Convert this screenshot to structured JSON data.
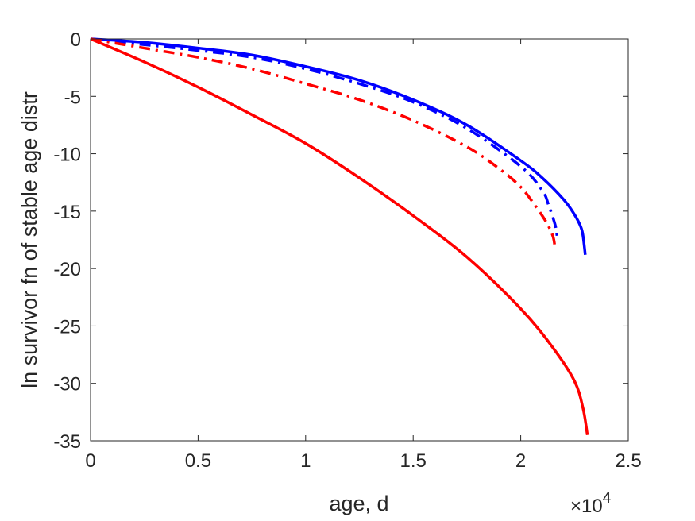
{
  "chart_data": {
    "type": "line",
    "title": "",
    "xlabel": "age, d",
    "ylabel": "ln survivor fn of stable age distr",
    "x_multiplier_label": "×10",
    "x_multiplier_exponent": "4",
    "xlim": [
      0,
      2.5
    ],
    "ylim": [
      -35,
      0
    ],
    "x_ticks": [
      0,
      0.5,
      1,
      1.5,
      2,
      2.5
    ],
    "x_tick_labels": [
      "0",
      "0.5",
      "1",
      "1.5",
      "2",
      "2.5"
    ],
    "y_ticks": [
      0,
      -5,
      -10,
      -15,
      -20,
      -25,
      -30,
      -35
    ],
    "y_tick_labels": [
      "0",
      "-5",
      "-10",
      "-15",
      "-20",
      "-25",
      "-30",
      "-35"
    ],
    "grid": false,
    "series": [
      {
        "color": "#0000ff",
        "style": "solid",
        "x": [
          0,
          0.25,
          0.5,
          0.75,
          1.0,
          1.25,
          1.5,
          1.75,
          2.0,
          2.1,
          2.2,
          2.25,
          2.28,
          2.29,
          2.3
        ],
        "y": [
          0,
          -0.3,
          -0.8,
          -1.4,
          -2.4,
          -3.6,
          -5.3,
          -7.5,
          -10.6,
          -12.1,
          -14.0,
          -15.3,
          -16.4,
          -17.2,
          -18.8
        ]
      },
      {
        "color": "#0000ff",
        "style": "dashdot",
        "x": [
          0,
          0.25,
          0.5,
          0.75,
          1.0,
          1.25,
          1.5,
          1.75,
          2.0,
          2.1,
          2.13,
          2.16,
          2.17
        ],
        "y": [
          0,
          -0.5,
          -1.0,
          -1.6,
          -2.6,
          -3.9,
          -5.5,
          -7.8,
          -11.1,
          -13.2,
          -14.5,
          -16.2,
          -17.3
        ]
      },
      {
        "color": "#ff0000",
        "style": "dashdot",
        "x": [
          0,
          0.25,
          0.5,
          0.75,
          1.0,
          1.25,
          1.5,
          1.75,
          1.9,
          2.0,
          2.07,
          2.12,
          2.15,
          2.16
        ],
        "y": [
          0,
          -0.8,
          -1.6,
          -2.6,
          -3.9,
          -5.3,
          -7.1,
          -9.4,
          -11.3,
          -12.9,
          -14.6,
          -16.0,
          -17.2,
          -18.3
        ]
      },
      {
        "color": "#ff0000",
        "style": "solid",
        "x": [
          0,
          0.25,
          0.5,
          0.75,
          1.0,
          1.25,
          1.5,
          1.75,
          2.0,
          2.15,
          2.25,
          2.29,
          2.31
        ],
        "y": [
          0,
          -2.0,
          -4.2,
          -6.6,
          -9.1,
          -12.1,
          -15.4,
          -19.0,
          -23.5,
          -26.9,
          -29.8,
          -32.2,
          -34.5
        ]
      }
    ]
  }
}
